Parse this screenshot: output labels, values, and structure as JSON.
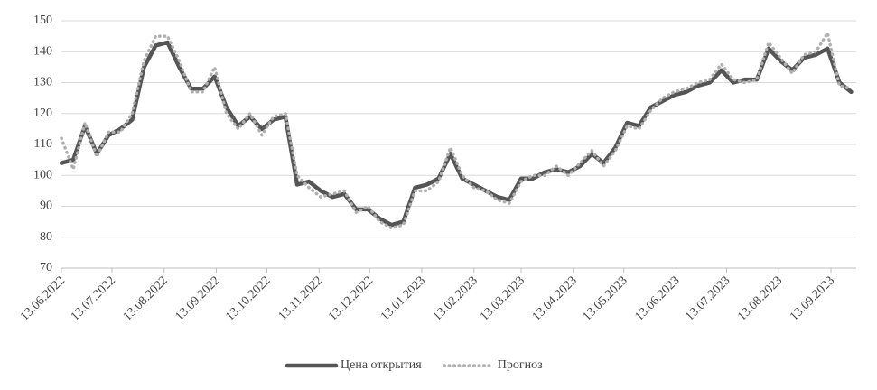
{
  "chart_data": {
    "type": "line",
    "x": [
      "2022-06-13",
      "2022-06-20",
      "2022-06-27",
      "2022-07-04",
      "2022-07-11",
      "2022-07-18",
      "2022-07-25",
      "2022-08-01",
      "2022-08-08",
      "2022-08-15",
      "2022-08-22",
      "2022-08-29",
      "2022-09-05",
      "2022-09-12",
      "2022-09-19",
      "2022-09-26",
      "2022-10-03",
      "2022-10-10",
      "2022-10-17",
      "2022-10-24",
      "2022-10-31",
      "2022-11-07",
      "2022-11-14",
      "2022-11-21",
      "2022-11-28",
      "2022-12-05",
      "2022-12-12",
      "2022-12-19",
      "2022-12-26",
      "2023-01-02",
      "2023-01-09",
      "2023-01-16",
      "2023-01-23",
      "2023-01-30",
      "2023-02-06",
      "2023-02-13",
      "2023-02-20",
      "2023-02-27",
      "2023-03-06",
      "2023-03-13",
      "2023-03-20",
      "2023-03-27",
      "2023-04-03",
      "2023-04-10",
      "2023-04-17",
      "2023-04-24",
      "2023-05-01",
      "2023-05-08",
      "2023-05-15",
      "2023-05-22",
      "2023-05-29",
      "2023-06-05",
      "2023-06-12",
      "2023-06-19",
      "2023-06-26",
      "2023-07-03",
      "2023-07-10",
      "2023-07-17",
      "2023-07-24",
      "2023-07-31",
      "2023-08-07",
      "2023-08-14",
      "2023-08-21",
      "2023-08-28",
      "2023-09-04",
      "2023-09-11",
      "2023-09-18",
      "2023-09-25"
    ],
    "series": [
      {
        "name": "Цена открытия",
        "color": "#555555",
        "values": [
          104,
          105,
          116,
          107,
          113,
          115,
          118,
          135,
          142,
          143,
          135,
          128,
          128,
          132,
          122,
          116,
          119,
          115,
          118,
          119,
          97,
          98,
          95,
          93,
          94,
          89,
          89,
          86,
          84,
          85,
          96,
          97,
          99,
          107,
          99,
          97,
          95,
          93,
          92,
          99,
          99,
          101,
          102,
          101,
          103,
          107,
          104,
          109,
          117,
          116,
          122,
          124,
          126,
          127,
          129,
          130,
          134,
          130,
          131,
          131,
          141,
          137,
          134,
          138,
          139,
          141,
          130,
          127
        ]
      },
      {
        "name": "Прогноз",
        "color": "#b0b0b0",
        "values": [
          112,
          102,
          117,
          106,
          114,
          114,
          120,
          137,
          145,
          145,
          137,
          127,
          127,
          135,
          120,
          115,
          120,
          113,
          119,
          120,
          100,
          96,
          93,
          94,
          95,
          88,
          90,
          85,
          83,
          84,
          95,
          95,
          98,
          109,
          100,
          96,
          95,
          92,
          91,
          98,
          100,
          100,
          103,
          100,
          104,
          108,
          103,
          108,
          116,
          115,
          121,
          125,
          127,
          128,
          130,
          131,
          136,
          131,
          130,
          131,
          143,
          138,
          133,
          139,
          140,
          146,
          129,
          128
        ]
      }
    ],
    "xlim": [
      "2022-06-13",
      "2023-09-28"
    ],
    "xticks": [
      {
        "value": "2022-06-13",
        "label": "13.06.2022"
      },
      {
        "value": "2022-07-13",
        "label": "13.07.2022"
      },
      {
        "value": "2022-08-13",
        "label": "13.08.2022"
      },
      {
        "value": "2022-09-13",
        "label": "13.09.2022"
      },
      {
        "value": "2022-10-13",
        "label": "13.10.2022"
      },
      {
        "value": "2022-11-13",
        "label": "13.11.2022"
      },
      {
        "value": "2022-12-13",
        "label": "13.12.2022"
      },
      {
        "value": "2023-01-13",
        "label": "13.01.2023"
      },
      {
        "value": "2023-02-13",
        "label": "13.02.2023"
      },
      {
        "value": "2023-03-13",
        "label": "13.03.2023"
      },
      {
        "value": "2023-04-13",
        "label": "13.04.2023"
      },
      {
        "value": "2023-05-13",
        "label": "13.05.2023"
      },
      {
        "value": "2023-06-13",
        "label": "13.06.2023"
      },
      {
        "value": "2023-07-13",
        "label": "13.07.2023"
      },
      {
        "value": "2023-08-13",
        "label": "13.08.2023"
      },
      {
        "value": "2023-09-13",
        "label": "13.09.2023"
      }
    ],
    "ylim": [
      70,
      150
    ],
    "yticks": [
      70,
      80,
      90,
      100,
      110,
      120,
      130,
      140,
      150
    ],
    "grid": true,
    "legend": "bottom"
  }
}
